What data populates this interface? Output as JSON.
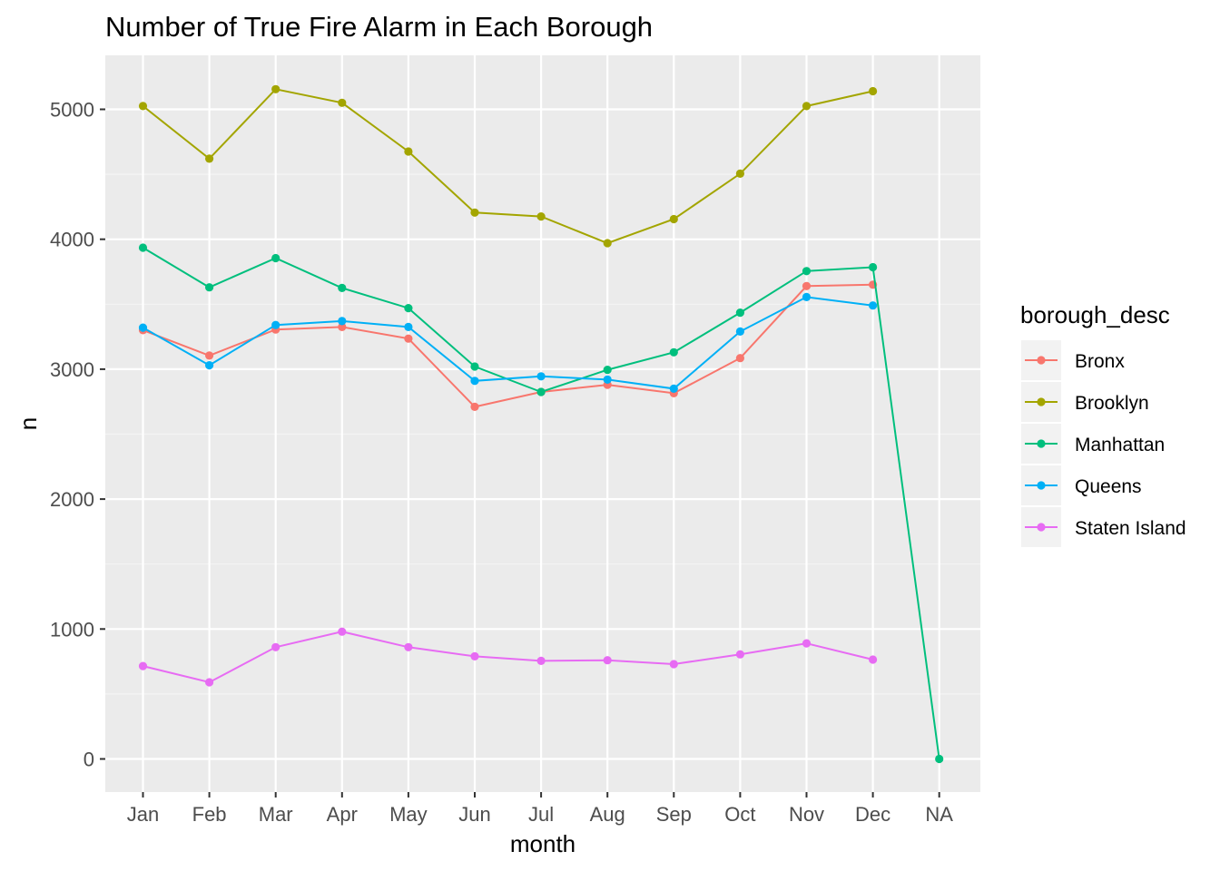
{
  "chart_data": {
    "type": "line",
    "title": "Number of True Fire Alarm in Each Borough",
    "xlabel": "month",
    "ylabel": "n",
    "categories": [
      "Jan",
      "Feb",
      "Mar",
      "Apr",
      "May",
      "Jun",
      "Jul",
      "Aug",
      "Sep",
      "Oct",
      "Nov",
      "Dec",
      "NA"
    ],
    "yticks": [
      0,
      1000,
      2000,
      3000,
      4000,
      5000
    ],
    "ylim": [
      -250,
      5400
    ],
    "grid": true,
    "panel_background": "#ebebeb",
    "legend": {
      "title": "borough_desc",
      "position": "right"
    },
    "series": [
      {
        "name": "Bronx",
        "color": "#f8766d",
        "values": [
          3300,
          3105,
          3305,
          3325,
          3235,
          2710,
          2825,
          2880,
          2815,
          3085,
          3640,
          3650,
          null
        ]
      },
      {
        "name": "Brooklyn",
        "color": "#a3a500",
        "values": [
          5025,
          4620,
          5155,
          5050,
          4675,
          4205,
          4175,
          3970,
          4155,
          4505,
          5025,
          5140,
          null
        ]
      },
      {
        "name": "Manhattan",
        "color": "#00bf7d",
        "values": [
          3935,
          3630,
          3855,
          3625,
          3470,
          3020,
          2825,
          2995,
          3130,
          3435,
          3755,
          3785,
          0
        ]
      },
      {
        "name": "Queens",
        "color": "#00b0f6",
        "values": [
          3320,
          3030,
          3340,
          3370,
          3325,
          2910,
          2945,
          2920,
          2850,
          3290,
          3555,
          3490,
          null
        ]
      },
      {
        "name": "Staten Island",
        "color": "#e76bf3",
        "values": [
          715,
          590,
          860,
          980,
          860,
          790,
          755,
          760,
          730,
          805,
          890,
          765,
          null
        ]
      }
    ]
  }
}
